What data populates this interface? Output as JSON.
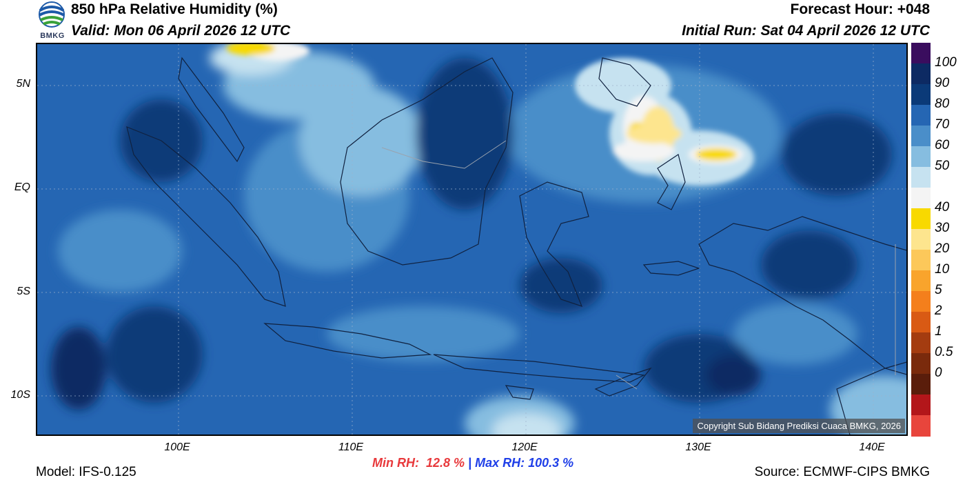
{
  "header": {
    "title": "850 hPa Relative Humidity (%)",
    "valid": "Valid: Mon 06 April 2026 12 UTC",
    "forecast_hour": "Forecast Hour: +048",
    "initial_run": "Initial Run: Sat 04 April 2026 12 UTC"
  },
  "logo": {
    "text": "BMKG"
  },
  "map": {
    "lat_labels": [
      "5N",
      "EQ",
      "5S",
      "10S"
    ],
    "lon_labels": [
      "100E",
      "110E",
      "120E",
      "130E",
      "140E"
    ],
    "copyright": "Copyright Sub Bidang Prediksi Cuaca BMKG, 2026"
  },
  "colorbar": {
    "labels": [
      "100",
      "90",
      "80",
      "70",
      "60",
      "50",
      "40",
      "30",
      "20",
      "10",
      "5",
      "2",
      "1",
      "0.5",
      "0"
    ],
    "colors": [
      "#3a0d5e",
      "#0d2a63",
      "#0b3a78",
      "#2566b3",
      "#4a8ec9",
      "#86bde0",
      "#c6e2f0",
      "#f4f4f4",
      "#f8d900",
      "#fde58e",
      "#fcc85a",
      "#f9a42c",
      "#f47f1c",
      "#d95a14",
      "#a43c10",
      "#7a2a0c",
      "#5a1d0b",
      "#b3161a",
      "#e8453c"
    ]
  },
  "footer": {
    "model": "Model: IFS-0.125",
    "min_rh": "Min RH:  12.8 %",
    "separator": " | ",
    "max_rh": "Max RH: 100.3 %",
    "source": "Source: ECMWF-CIPS BMKG"
  }
}
